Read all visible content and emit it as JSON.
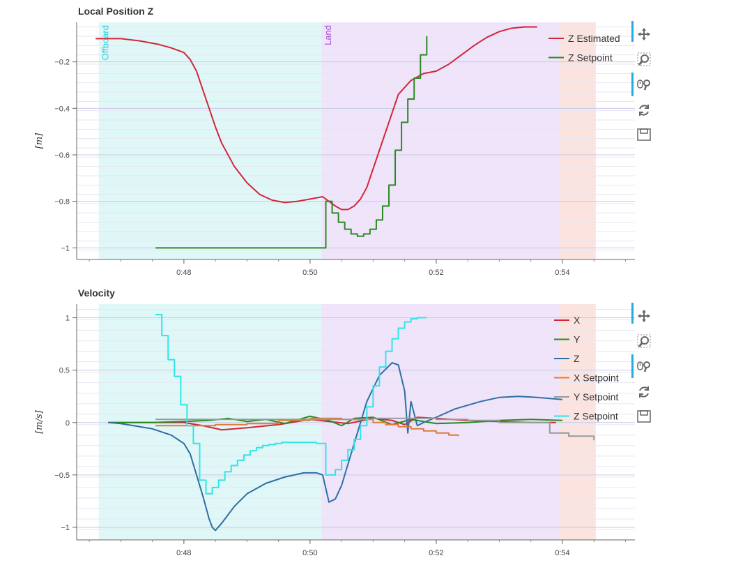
{
  "colors": {
    "offboard_bg": "#e0f7f7",
    "land_bg": "#efe4fa",
    "end_bg": "#fbe4e0",
    "offboard_text": "#22d3e0",
    "land_text": "#a24fd3",
    "grid_major": "#c9c9e8",
    "grid_minor": "#e6e6f2",
    "red": "#d2263a",
    "green": "#2a8a1f",
    "blue": "#2d6fa3",
    "orange": "#e07b39",
    "gray": "#999999",
    "cyan": "#2ee6e6"
  },
  "regions": [
    {
      "name": "Offboard",
      "start": 46.65,
      "end": 50.18,
      "color": "offboard"
    },
    {
      "name": "Land",
      "start": 50.18,
      "end": 53.95,
      "color": "land"
    },
    {
      "name": "",
      "start": 53.95,
      "end": 54.53,
      "color": "end"
    }
  ],
  "toolbar": {
    "pan": "pan-icon",
    "box_zoom": "box-zoom-icon",
    "wheel_zoom": "wheel-zoom-icon",
    "reset": "reset-icon",
    "save": "save-icon"
  },
  "chart_data": [
    {
      "type": "line",
      "title": "Local Position Z",
      "xlabel": "",
      "ylabel": "[m]",
      "xlim": [
        46.3,
        55.15
      ],
      "ylim": [
        -1.05,
        -0.03
      ],
      "xticks": [
        {
          "v": 48,
          "label": "0:48"
        },
        {
          "v": 50,
          "label": "0:50"
        },
        {
          "v": 52,
          "label": "0:52"
        },
        {
          "v": 54,
          "label": "0:54"
        }
      ],
      "yticks": [
        {
          "v": -0.2,
          "label": "−0.2"
        },
        {
          "v": -0.4,
          "label": "−0.4"
        },
        {
          "v": -0.6,
          "label": "−0.6"
        },
        {
          "v": -0.8,
          "label": "−0.8"
        },
        {
          "v": -1.0,
          "label": "−1"
        }
      ],
      "legend": {
        "placement": "top-right"
      },
      "series": [
        {
          "name": "Z Estimated",
          "color": "red",
          "step": false,
          "x": [
            46.6,
            47.0,
            47.3,
            47.6,
            47.8,
            48.0,
            48.1,
            48.2,
            48.3,
            48.4,
            48.5,
            48.6,
            48.8,
            49.0,
            49.2,
            49.4,
            49.6,
            49.8,
            50.0,
            50.2,
            50.3,
            50.4,
            50.5,
            50.6,
            50.7,
            50.8,
            50.9,
            51.0,
            51.2,
            51.4,
            51.6,
            51.8,
            52.0,
            52.2,
            52.4,
            52.6,
            52.8,
            53.0,
            53.2,
            53.4,
            53.6
          ],
          "y": [
            -0.1,
            -0.1,
            -0.11,
            -0.125,
            -0.14,
            -0.16,
            -0.19,
            -0.24,
            -0.32,
            -0.4,
            -0.48,
            -0.55,
            -0.65,
            -0.72,
            -0.77,
            -0.795,
            -0.805,
            -0.8,
            -0.79,
            -0.78,
            -0.8,
            -0.82,
            -0.835,
            -0.835,
            -0.82,
            -0.79,
            -0.74,
            -0.66,
            -0.5,
            -0.34,
            -0.28,
            -0.25,
            -0.24,
            -0.21,
            -0.17,
            -0.13,
            -0.095,
            -0.07,
            -0.055,
            -0.05,
            -0.05
          ]
        },
        {
          "name": "Z Setpoint",
          "color": "green",
          "step": true,
          "x": [
            47.55,
            48.5,
            49.5,
            50.25,
            50.35,
            50.45,
            50.55,
            50.65,
            50.75,
            50.85,
            50.95,
            51.05,
            51.15,
            51.25,
            51.35,
            51.45,
            51.55,
            51.65,
            51.75,
            51.85
          ],
          "y": [
            -1.0,
            -1.0,
            -1.0,
            -0.8,
            -0.85,
            -0.89,
            -0.92,
            -0.94,
            -0.95,
            -0.94,
            -0.92,
            -0.88,
            -0.82,
            -0.73,
            -0.58,
            -0.46,
            -0.36,
            -0.27,
            -0.17,
            -0.09
          ]
        }
      ]
    },
    {
      "type": "line",
      "title": "Velocity",
      "xlabel": "",
      "ylabel": "[m/s]",
      "xlim": [
        46.3,
        55.15
      ],
      "ylim": [
        -1.12,
        1.13
      ],
      "xticks": [
        {
          "v": 48,
          "label": "0:48"
        },
        {
          "v": 50,
          "label": "0:50"
        },
        {
          "v": 52,
          "label": "0:52"
        },
        {
          "v": 54,
          "label": "0:54"
        }
      ],
      "yticks": [
        {
          "v": 1,
          "label": "1"
        },
        {
          "v": 0.5,
          "label": "0.5"
        },
        {
          "v": 0,
          "label": "0"
        },
        {
          "v": -0.5,
          "label": "−0.5"
        },
        {
          "v": -1,
          "label": "−1"
        }
      ],
      "legend": {
        "placement": "top-right"
      },
      "series": [
        {
          "name": "X",
          "color": "red",
          "step": false,
          "x": [
            46.8,
            47.5,
            48.0,
            48.3,
            48.6,
            49.0,
            49.5,
            50.0,
            50.3,
            50.6,
            51.0,
            51.3,
            51.5,
            51.7,
            52.0,
            52.5,
            53.0,
            53.5,
            53.9
          ],
          "y": [
            0.0,
            0.0,
            0.0,
            -0.03,
            -0.07,
            -0.05,
            -0.02,
            0.03,
            0.01,
            -0.01,
            0.04,
            0.02,
            -0.02,
            0.05,
            0.04,
            0.02,
            0.01,
            0.0,
            0.0
          ]
        },
        {
          "name": "Y",
          "color": "green",
          "step": false,
          "x": [
            46.8,
            47.5,
            48.0,
            48.4,
            48.7,
            49.0,
            49.3,
            49.6,
            50.0,
            50.3,
            50.5,
            50.7,
            51.0,
            51.3,
            51.6,
            52.0,
            52.5,
            53.0,
            53.5,
            54.0
          ],
          "y": [
            0.0,
            0.0,
            0.01,
            0.02,
            0.04,
            0.01,
            0.03,
            -0.01,
            0.06,
            0.02,
            -0.03,
            0.04,
            0.05,
            -0.02,
            0.03,
            -0.01,
            0.0,
            0.02,
            0.03,
            0.02
          ]
        },
        {
          "name": "Z",
          "color": "blue",
          "step": false,
          "x": [
            46.8,
            47.0,
            47.5,
            47.8,
            48.0,
            48.1,
            48.2,
            48.3,
            48.4,
            48.45,
            48.5,
            48.6,
            48.8,
            49.0,
            49.3,
            49.6,
            49.9,
            50.1,
            50.2,
            50.3,
            50.4,
            50.5,
            50.7,
            50.9,
            51.1,
            51.3,
            51.4,
            51.5,
            51.55,
            51.6,
            51.7,
            51.8,
            52.0,
            52.3,
            52.7,
            53.0,
            53.3,
            53.6,
            54.0
          ],
          "y": [
            0.0,
            -0.01,
            -0.06,
            -0.12,
            -0.2,
            -0.3,
            -0.5,
            -0.7,
            -0.92,
            -1.0,
            -1.03,
            -0.96,
            -0.8,
            -0.68,
            -0.58,
            -0.52,
            -0.48,
            -0.48,
            -0.5,
            -0.76,
            -0.73,
            -0.6,
            -0.2,
            0.2,
            0.45,
            0.57,
            0.55,
            0.3,
            -0.1,
            0.2,
            -0.03,
            0.0,
            0.05,
            0.13,
            0.2,
            0.24,
            0.25,
            0.24,
            0.22
          ]
        },
        {
          "name": "X Setpoint",
          "color": "orange",
          "step": true,
          "x": [
            47.55,
            48.0,
            48.5,
            49.0,
            49.5,
            50.0,
            50.5,
            51.0,
            51.2,
            51.4,
            51.6,
            51.8,
            52.0,
            52.2,
            52.35
          ],
          "y": [
            -0.03,
            -0.03,
            -0.02,
            -0.01,
            0.02,
            0.04,
            0.03,
            0.0,
            -0.02,
            -0.04,
            -0.06,
            -0.08,
            -0.1,
            -0.12,
            -0.13
          ]
        },
        {
          "name": "Y Setpoint",
          "color": "gray",
          "step": true,
          "x": [
            47.55,
            48.5,
            49.5,
            50.5,
            51.0,
            51.5,
            52.0,
            52.5,
            53.0,
            53.5,
            53.8,
            54.1,
            54.5
          ],
          "y": [
            0.03,
            0.03,
            0.03,
            0.03,
            0.04,
            0.04,
            0.03,
            0.02,
            0.0,
            0.0,
            -0.1,
            -0.13,
            -0.17
          ]
        },
        {
          "name": "Z Setpoint",
          "color": "cyan",
          "step": true,
          "x": [
            47.55,
            47.65,
            47.75,
            47.85,
            47.95,
            48.05,
            48.15,
            48.25,
            48.35,
            48.45,
            48.55,
            48.65,
            48.75,
            48.85,
            48.95,
            49.05,
            49.15,
            49.25,
            49.35,
            49.45,
            49.55,
            49.7,
            50.1,
            50.25,
            50.4,
            50.5,
            50.6,
            50.7,
            50.8,
            50.9,
            51.0,
            51.1,
            51.2,
            51.3,
            51.4,
            51.5,
            51.6,
            51.7,
            51.85
          ],
          "y": [
            1.03,
            0.83,
            0.6,
            0.44,
            0.17,
            -0.03,
            -0.2,
            -0.55,
            -0.68,
            -0.62,
            -0.55,
            -0.47,
            -0.41,
            -0.36,
            -0.31,
            -0.27,
            -0.24,
            -0.22,
            -0.21,
            -0.2,
            -0.19,
            -0.19,
            -0.2,
            -0.5,
            -0.45,
            -0.36,
            -0.26,
            -0.16,
            -0.03,
            0.15,
            0.35,
            0.53,
            0.68,
            0.8,
            0.9,
            0.96,
            0.99,
            1.0,
            1.0
          ]
        }
      ]
    }
  ]
}
